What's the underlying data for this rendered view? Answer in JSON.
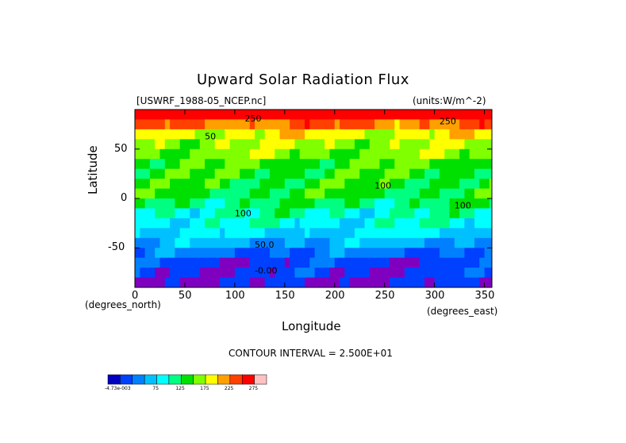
{
  "chart_data": {
    "type": "heatmap",
    "title": "Upward Solar Radiation Flux",
    "file_label": "[USWRF_1988-05_NCEP.nc]",
    "units_label": "(units:W/m^-2)",
    "xlabel": "Longitude",
    "ylabel": "Latitude",
    "x_units_label": "(degrees_east)",
    "y_units_label": "(degrees_north)",
    "xlim": [
      0,
      357.5
    ],
    "ylim": [
      -90,
      90
    ],
    "x_ticks": [
      0,
      50,
      100,
      150,
      200,
      250,
      300,
      350
    ],
    "y_ticks": [
      50,
      0,
      -50
    ],
    "contour_interval_text": "CONTOUR INTERVAL = 2.500E+01",
    "contour_labels": [
      "250",
      "50",
      "100",
      "100",
      "50.0",
      "-0.00",
      "250",
      "100"
    ],
    "latitude": [
      85,
      75,
      65,
      55,
      45,
      35,
      25,
      15,
      5,
      -5,
      -15,
      -25,
      -35,
      -45,
      -55,
      -65,
      -75,
      -85
    ],
    "zonal_values": [
      260,
      225,
      185,
      170,
      160,
      145,
      140,
      135,
      130,
      120,
      100,
      90,
      75,
      55,
      30,
      10,
      5,
      0
    ],
    "colorbar": {
      "levels": [
        -0.00473,
        25,
        50,
        75,
        100,
        125,
        150,
        175,
        200,
        225,
        250,
        275
      ],
      "tick_labels": [
        "-4.73e-003",
        "75",
        "125",
        "175",
        "225",
        "275"
      ],
      "colors": [
        "#0000bf",
        "#0040ff",
        "#0080ff",
        "#00c0ff",
        "#00ffff",
        "#00ff80",
        "#00e000",
        "#80ff00",
        "#ffff00",
        "#ffa000",
        "#ff4000",
        "#ff0000",
        "#ffc0c0"
      ]
    },
    "colors": {
      "bottom_band": "#8000c0"
    },
    "grid": false,
    "legend_placement": "bottom-left"
  }
}
